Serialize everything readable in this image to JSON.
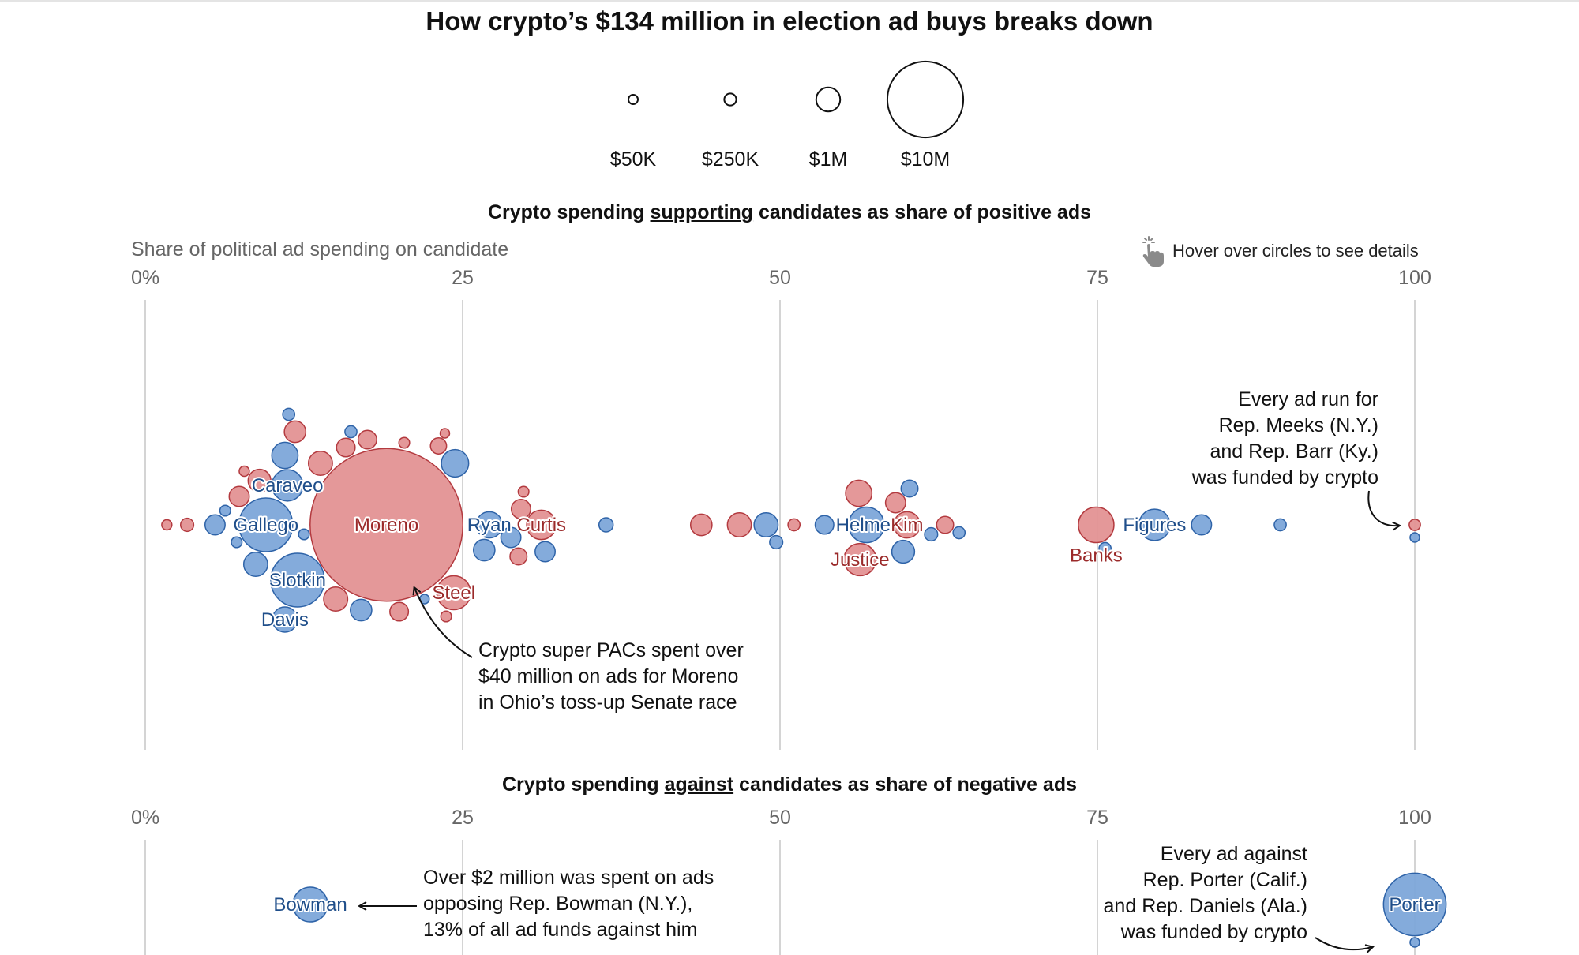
{
  "title": "How crypto’s $134 million in election ad buys breaks down",
  "size_legend": [
    {
      "label": "$50K",
      "value": 50000
    },
    {
      "label": "$250K",
      "value": 250000
    },
    {
      "label": "$1M",
      "value": 1000000
    },
    {
      "label": "$10M",
      "value": 10000000
    }
  ],
  "hover_hint": "Hover over circles to see details",
  "colors": {
    "democrat_fill": "#7da6d9",
    "democrat_stroke": "#2e63a8",
    "republican_fill": "#e39294",
    "republican_stroke": "#b33a3f",
    "gridline": "#d4d4d4",
    "label_dem": "#1f4e8a",
    "label_rep": "#9b2a2a"
  },
  "chart_data": [
    {
      "type": "scatter",
      "title_pre": "Crypto spending ",
      "title_em": "supporting",
      "title_post": " candidates as share of positive ads",
      "xlabel": "Share of political ad spending on candidate",
      "xlim": [
        0,
        100
      ],
      "ticks": [
        "0%",
        "25",
        "50",
        "75",
        "100"
      ],
      "tick_values": [
        0,
        25,
        50,
        75,
        100
      ],
      "points": [
        {
          "x": 11,
          "amount": 1200000,
          "party": "D"
        },
        {
          "x": 11,
          "amount": 1100000,
          "party": "D",
          "label": "Davis"
        },
        {
          "x": 15,
          "amount": 1000000,
          "party": "R"
        },
        {
          "x": 17.5,
          "amount": 600000,
          "party": "R"
        },
        {
          "x": 20,
          "amount": 600000,
          "party": "R"
        },
        {
          "x": 22,
          "amount": 150000,
          "party": "D"
        },
        {
          "x": 12.5,
          "amount": 200000,
          "party": "D"
        },
        {
          "x": 9.5,
          "amount": 5000000,
          "party": "D",
          "label": "Gallego"
        },
        {
          "x": 19,
          "amount": 40500000,
          "party": "R",
          "label": "Moreno"
        },
        {
          "x": 5.5,
          "amount": 700000,
          "party": "D"
        },
        {
          "x": 3.3,
          "amount": 300000,
          "party": "R"
        },
        {
          "x": 1.7,
          "amount": 180000,
          "party": "R"
        },
        {
          "x": 7.8,
          "amount": 180000,
          "party": "R"
        },
        {
          "x": 7.2,
          "amount": 200000,
          "party": "D"
        },
        {
          "x": 9,
          "amount": 900000,
          "party": "R"
        },
        {
          "x": 11.8,
          "amount": 800000,
          "party": "R"
        },
        {
          "x": 7.4,
          "amount": 700000,
          "party": "R"
        },
        {
          "x": 12,
          "amount": 5000000,
          "party": "D",
          "label": "Slotkin"
        },
        {
          "x": 6.3,
          "amount": 200000,
          "party": "D"
        },
        {
          "x": 16.2,
          "amount": 250000,
          "party": "D"
        },
        {
          "x": 15.8,
          "amount": 600000,
          "party": "R"
        },
        {
          "x": 8.7,
          "amount": 1000000,
          "party": "D"
        },
        {
          "x": 11.3,
          "amount": 250000,
          "party": "D"
        },
        {
          "x": 13.8,
          "amount": 1000000,
          "party": "R"
        },
        {
          "x": 17,
          "amount": 800000,
          "party": "D"
        },
        {
          "x": 11.2,
          "amount": 1700000,
          "party": "D",
          "label": "Caraveo"
        },
        {
          "x": 23.6,
          "amount": 150000,
          "party": "R"
        },
        {
          "x": 26.7,
          "amount": 800000,
          "party": "D"
        },
        {
          "x": 29.6,
          "amount": 650000,
          "party": "R"
        },
        {
          "x": 24.3,
          "amount": 2000000,
          "party": "R",
          "label": "Steel"
        },
        {
          "x": 29.4,
          "amount": 500000,
          "party": "R"
        },
        {
          "x": 27.1,
          "amount": 1200000,
          "party": "D",
          "label": "Ryan"
        },
        {
          "x": 31.2,
          "amount": 1500000,
          "party": "R",
          "label": "Curtis"
        },
        {
          "x": 29.8,
          "amount": 200000,
          "party": "R"
        },
        {
          "x": 24.4,
          "amount": 1300000,
          "party": "D"
        },
        {
          "x": 28.8,
          "amount": 700000,
          "party": "D"
        },
        {
          "x": 31.5,
          "amount": 700000,
          "party": "D"
        },
        {
          "x": 23.1,
          "amount": 450000,
          "party": "R"
        },
        {
          "x": 20.4,
          "amount": 200000,
          "party": "R"
        },
        {
          "x": 23.7,
          "amount": 200000,
          "party": "R"
        },
        {
          "x": 36.3,
          "amount": 350000,
          "party": "D"
        },
        {
          "x": 43.8,
          "amount": 800000,
          "party": "R"
        },
        {
          "x": 46.8,
          "amount": 1000000,
          "party": "R"
        },
        {
          "x": 49.7,
          "amount": 300000,
          "party": "D"
        },
        {
          "x": 51.1,
          "amount": 250000,
          "party": "R"
        },
        {
          "x": 48.9,
          "amount": 1000000,
          "party": "D"
        },
        {
          "x": 53.5,
          "amount": 600000,
          "party": "D"
        },
        {
          "x": 56.8,
          "amount": 2200000,
          "party": "D",
          "label": "Helmer"
        },
        {
          "x": 60.2,
          "amount": 500000,
          "party": "D"
        },
        {
          "x": 61.9,
          "amount": 300000,
          "party": "D"
        },
        {
          "x": 64.1,
          "amount": 250000,
          "party": "D"
        },
        {
          "x": 60,
          "amount": 1200000,
          "party": "R",
          "label": "Kim"
        },
        {
          "x": 56.3,
          "amount": 1800000,
          "party": "R",
          "label": "Justice"
        },
        {
          "x": 63,
          "amount": 500000,
          "party": "R"
        },
        {
          "x": 59.1,
          "amount": 700000,
          "party": "R"
        },
        {
          "x": 56.2,
          "amount": 1200000,
          "party": "R"
        },
        {
          "x": 59.7,
          "amount": 900000,
          "party": "D"
        },
        {
          "x": 75.6,
          "amount": 250000,
          "party": "D"
        },
        {
          "x": 74.9,
          "amount": 2200000,
          "party": "R",
          "label": "Banks"
        },
        {
          "x": 79.5,
          "amount": 1700000,
          "party": "D",
          "label": "Figures"
        },
        {
          "x": 83.2,
          "amount": 700000,
          "party": "D"
        },
        {
          "x": 89.4,
          "amount": 250000,
          "party": "D"
        },
        {
          "x": 100,
          "amount": 220000,
          "party": "R"
        },
        {
          "x": 100,
          "amount": 150000,
          "party": "D"
        }
      ],
      "annotations": [
        {
          "text_lines": [
            "Crypto super PACs spent over",
            "$40 million on ads for Moreno",
            "in Ohio’s toss-up Senate race"
          ]
        },
        {
          "text_lines": [
            "Every ad run for",
            "Rep. Meeks (N.Y.)",
            "and Rep. Barr (Ky.)",
            "was funded by crypto"
          ]
        }
      ]
    },
    {
      "type": "scatter",
      "title_pre": "Crypto spending ",
      "title_em": "against",
      "title_post": " candidates as share of negative ads",
      "xlim": [
        0,
        100
      ],
      "ticks": [
        "0%",
        "25",
        "50",
        "75",
        "100"
      ],
      "tick_values": [
        0,
        25,
        50,
        75,
        100
      ],
      "points": [
        {
          "x": 13,
          "amount": 2100000,
          "party": "D",
          "label": "Bowman"
        },
        {
          "x": 100,
          "amount": 6800000,
          "party": "D",
          "label": "Porter"
        },
        {
          "x": 100,
          "amount": 100000,
          "party": "D"
        }
      ],
      "annotations": [
        {
          "text_lines": [
            "Over $2 million was spent on ads",
            "opposing Rep. Bowman (N.Y.),",
            "13% of all ad funds against him"
          ]
        },
        {
          "text_lines": [
            "Every ad against",
            "Rep. Porter (Calif.)",
            "and Rep. Daniels (Ala.)",
            "was funded by crypto"
          ]
        }
      ]
    }
  ]
}
